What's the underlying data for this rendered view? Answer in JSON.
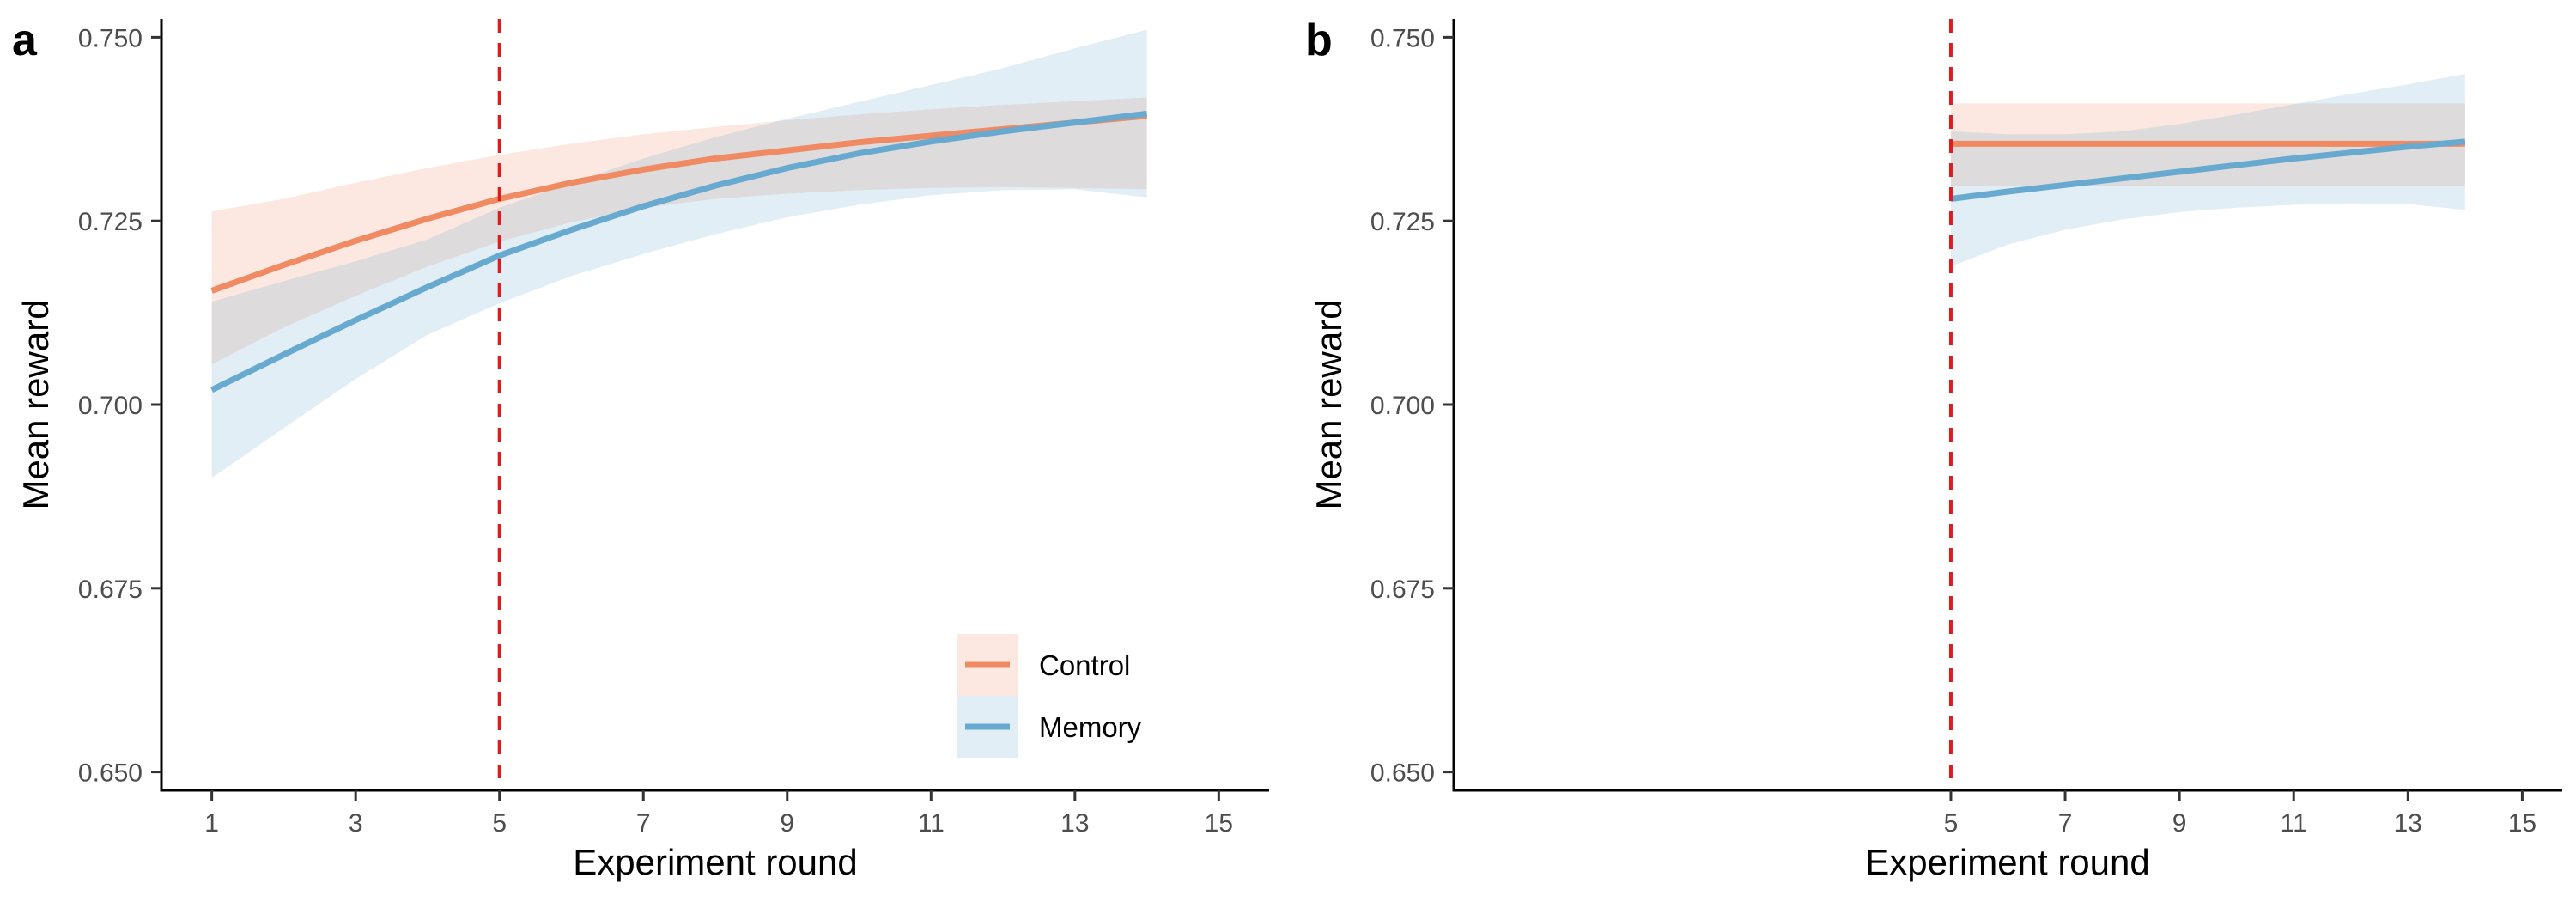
{
  "chart_data": [
    {
      "panel_label": "a",
      "type": "line",
      "xlabel": "Experiment round",
      "ylabel": "Mean reward",
      "xlim": [
        0.3,
        15.7
      ],
      "ylim": [
        0.6475,
        0.7525
      ],
      "xticks": [
        1,
        3,
        5,
        7,
        9,
        11,
        13,
        15
      ],
      "xtick_labels": [
        "1",
        "3",
        "5",
        "7",
        "9",
        "11",
        "13",
        "15"
      ],
      "yticks": [
        0.65,
        0.675,
        0.7,
        0.725,
        0.75
      ],
      "ytick_labels": [
        "0.650",
        "0.675",
        "0.700",
        "0.725",
        "0.750"
      ],
      "vline": {
        "x": 5,
        "color": "#e31a1c",
        "style": "dashed"
      },
      "legend": {
        "position": "bottom-right",
        "entries": [
          "Control",
          "Memory"
        ]
      },
      "series": [
        {
          "name": "Control",
          "color": "#ef8a62",
          "x": [
            1,
            2,
            3,
            4,
            5,
            6,
            7,
            8,
            9,
            10,
            11,
            12,
            13,
            14
          ],
          "y": [
            0.7155,
            0.719,
            0.7223,
            0.7253,
            0.728,
            0.7302,
            0.732,
            0.7335,
            0.7346,
            0.7357,
            0.7366,
            0.7375,
            0.7384,
            0.7393
          ],
          "lower": [
            0.7055,
            0.7105,
            0.7148,
            0.7188,
            0.7222,
            0.7248,
            0.7268,
            0.728,
            0.7287,
            0.7292,
            0.7295,
            0.7296,
            0.7295,
            0.7293
          ],
          "upper": [
            0.7263,
            0.728,
            0.7302,
            0.7322,
            0.734,
            0.7355,
            0.7368,
            0.7378,
            0.7387,
            0.7395,
            0.7402,
            0.7408,
            0.7413,
            0.7418
          ]
        },
        {
          "name": "Memory",
          "color": "#67a9cf",
          "x": [
            1,
            2,
            3,
            4,
            5,
            6,
            7,
            8,
            9,
            10,
            11,
            12,
            13,
            14
          ],
          "y": [
            0.702,
            0.7068,
            0.7115,
            0.716,
            0.7203,
            0.7238,
            0.727,
            0.7298,
            0.7322,
            0.7342,
            0.7358,
            0.7372,
            0.7384,
            0.7396
          ],
          "lower": [
            0.69,
            0.6968,
            0.7035,
            0.7095,
            0.7138,
            0.7175,
            0.7205,
            0.7232,
            0.7255,
            0.7272,
            0.7285,
            0.7292,
            0.7293,
            0.7282
          ],
          "upper": [
            0.714,
            0.7168,
            0.7195,
            0.7225,
            0.7268,
            0.7302,
            0.7335,
            0.7364,
            0.7389,
            0.7412,
            0.7435,
            0.7458,
            0.7485,
            0.751
          ]
        }
      ]
    },
    {
      "panel_label": "b",
      "type": "line",
      "xlabel": "Experiment round",
      "ylabel": "Mean reward",
      "xlim": [
        -3.7,
        15.7
      ],
      "ylim": [
        0.6475,
        0.7525
      ],
      "xticks": [
        5,
        7,
        9,
        11,
        13,
        15
      ],
      "xtick_labels": [
        "5",
        "7",
        "9",
        "11",
        "13",
        "15"
      ],
      "yticks": [
        0.65,
        0.675,
        0.7,
        0.725,
        0.75
      ],
      "ytick_labels": [
        "0.650",
        "0.675",
        "0.700",
        "0.725",
        "0.750"
      ],
      "vline": {
        "x": 5,
        "color": "#e31a1c",
        "style": "dashed"
      },
      "series": [
        {
          "name": "Control",
          "color": "#ef8a62",
          "x": [
            5,
            14
          ],
          "y": [
            0.7355,
            0.7355
          ],
          "lower": [
            0.7298,
            0.7298
          ],
          "upper": [
            0.741,
            0.741
          ]
        },
        {
          "name": "Memory",
          "color": "#67a9cf",
          "x": [
            5,
            6,
            7,
            8,
            9,
            10,
            11,
            12,
            13,
            14
          ],
          "y": [
            0.728,
            0.729,
            0.7299,
            0.7308,
            0.7317,
            0.7326,
            0.7335,
            0.7343,
            0.7351,
            0.7358
          ],
          "lower": [
            0.7188,
            0.7218,
            0.7238,
            0.7252,
            0.7262,
            0.7268,
            0.7272,
            0.7274,
            0.7273,
            0.7265
          ],
          "upper": [
            0.7372,
            0.7368,
            0.7368,
            0.7372,
            0.7382,
            0.7395,
            0.7409,
            0.7423,
            0.7436,
            0.745
          ]
        }
      ]
    }
  ]
}
